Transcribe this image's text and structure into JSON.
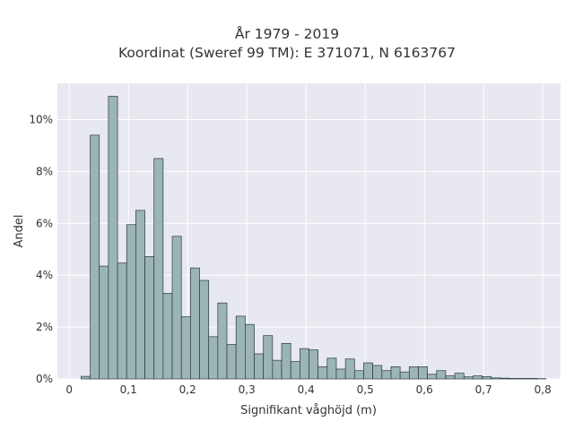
{
  "chart_data": {
    "type": "bar",
    "title": "År 1979 - 2019",
    "subtitle": "Koordinat (Sweref 99 TM): E 371071, N 6163767",
    "xlabel": "Signifikant våghöjd (m)",
    "ylabel": "Andel",
    "xlim": [
      -0.02,
      0.83
    ],
    "ylim": [
      0,
      0.114
    ],
    "x_ticks": [
      0,
      0.1,
      0.2,
      0.3,
      0.4,
      0.5,
      0.6,
      0.7,
      0.8
    ],
    "x_tick_labels": [
      "0",
      "0,1",
      "0,2",
      "0,3",
      "0,4",
      "0,5",
      "0,6",
      "0,7",
      "0,8"
    ],
    "y_ticks": [
      0,
      0.02,
      0.04,
      0.06,
      0.08,
      0.1
    ],
    "y_tick_labels": [
      "0%",
      "2%",
      "4%",
      "6%",
      "8%",
      "10%"
    ],
    "grid": true,
    "bin_edges": [
      0.02,
      0.0354,
      0.0508,
      0.0662,
      0.0816,
      0.097,
      0.1124,
      0.1278,
      0.1432,
      0.1586,
      0.174,
      0.1894,
      0.2048,
      0.2202,
      0.2356,
      0.251,
      0.2664,
      0.2818,
      0.2972,
      0.3126,
      0.328,
      0.3434,
      0.3588,
      0.3742,
      0.3896,
      0.405,
      0.4204,
      0.4358,
      0.4512,
      0.4666,
      0.482,
      0.4974,
      0.5128,
      0.5282,
      0.5436,
      0.559,
      0.5744,
      0.5898,
      0.6052,
      0.6206,
      0.636,
      0.6514,
      0.6668,
      0.6822,
      0.6976,
      0.713,
      0.7284,
      0.7438,
      0.7592,
      0.7746,
      0.79,
      0.8054
    ],
    "values": [
      0.001,
      0.094,
      0.0435,
      0.109,
      0.0447,
      0.0595,
      0.065,
      0.0472,
      0.085,
      0.033,
      0.055,
      0.024,
      0.0428,
      0.038,
      0.0163,
      0.0293,
      0.0133,
      0.0242,
      0.021,
      0.0097,
      0.0167,
      0.0072,
      0.0137,
      0.0067,
      0.0117,
      0.0112,
      0.0047,
      0.008,
      0.0038,
      0.0077,
      0.0032,
      0.0062,
      0.0052,
      0.0032,
      0.0047,
      0.0027,
      0.0047,
      0.0047,
      0.0018,
      0.0032,
      0.0012,
      0.0022,
      0.0008,
      0.0012,
      0.0009,
      0.0004,
      0.0003,
      0.0002,
      0.0002,
      0.0002,
      0.0001
    ],
    "colors": {
      "bar_fill": "#9bb4b4",
      "bar_edge": "#2c3a3a",
      "plot_bg": "#e8e8f0",
      "grid": "#ffffff"
    }
  }
}
